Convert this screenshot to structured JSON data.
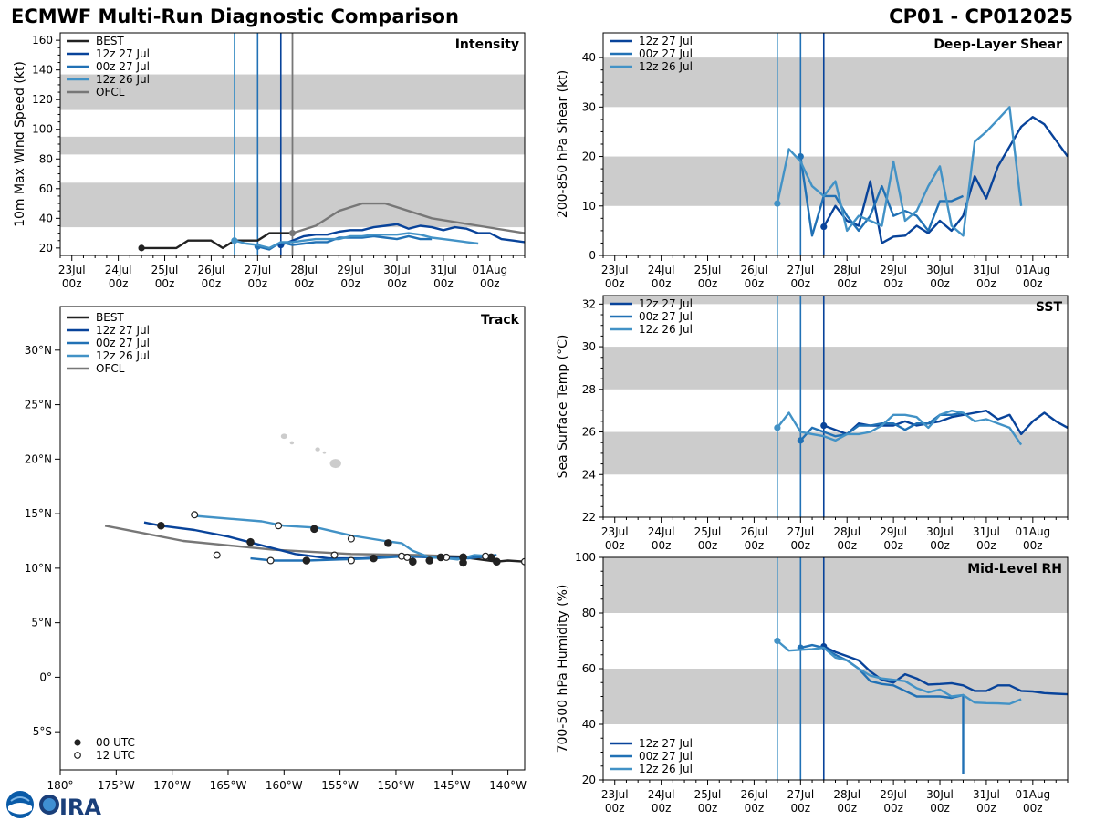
{
  "header": {
    "title_left": "ECMWF Multi-Run Diagnostic Comparison",
    "title_right": "CP01 - CP012025"
  },
  "colors": {
    "BEST": "#222222",
    "12z 27 Jul": "#08439a",
    "00z 27 Jul": "#2171b5",
    "12z 26 Jul": "#4292c6",
    "OFCL": "#777777",
    "band": "#cccccc",
    "land": "#cccccc"
  },
  "time_ticks": [
    "23Jul\n00z",
    "24Jul\n00z",
    "25Jul\n00z",
    "26Jul\n00z",
    "27Jul\n00z",
    "28Jul\n00z",
    "29Jul\n00z",
    "30Jul\n00z",
    "31Jul\n00z",
    "01Aug\n00z"
  ],
  "init_markers": [
    {
      "run": "12z 26 Jul",
      "t": 3.5
    },
    {
      "run": "00z 27 Jul",
      "t": 4.0
    },
    {
      "run": "12z 27 Jul",
      "t": 4.5
    }
  ],
  "logo": {
    "noaa": "NOAA",
    "cira": "CIRA"
  },
  "chart_data": [
    {
      "id": "intensity",
      "type": "line",
      "title": "Intensity",
      "ylabel": "10m Max Wind Speed (kt)",
      "xlim": [
        -0.25,
        9.75
      ],
      "ylim": [
        15,
        165
      ],
      "yticks": [
        20,
        40,
        60,
        80,
        100,
        120,
        140,
        160
      ],
      "bands": [
        [
          34,
          64
        ],
        [
          83,
          95
        ],
        [
          113,
          137
        ]
      ],
      "legend": [
        "BEST",
        "12z 27 Jul",
        "00z 27 Jul",
        "12z 26 Jul",
        "OFCL"
      ],
      "extra_vlines": [
        {
          "run": "OFCL",
          "t": 4.75
        }
      ],
      "series": [
        {
          "name": "BEST",
          "t": [
            1.5,
            1.75,
            2.0,
            2.25,
            2.5,
            2.75,
            3.0,
            3.25,
            3.5,
            3.75,
            4.0,
            4.25,
            4.5,
            4.75
          ],
          "v": [
            20,
            20,
            20,
            20,
            25,
            25,
            25,
            20,
            25,
            25,
            25,
            30,
            30,
            30
          ]
        },
        {
          "name": "12z 27 Jul",
          "t": [
            4.5,
            4.75,
            5.0,
            5.25,
            5.5,
            5.75,
            6.0,
            6.25,
            6.5,
            6.75,
            7.0,
            7.25,
            7.5,
            7.75,
            8.0,
            8.25,
            8.5,
            8.75,
            9.0,
            9.25,
            9.5,
            9.75
          ],
          "v": [
            22,
            25,
            28,
            29,
            29,
            31,
            32,
            32,
            34,
            35,
            36,
            33,
            35,
            34,
            32,
            34,
            33,
            30,
            30,
            26,
            25,
            24
          ]
        },
        {
          "name": "00z 27 Jul",
          "t": [
            4.0,
            4.25,
            4.5,
            4.75,
            5.0,
            5.25,
            5.5,
            5.75,
            6.0,
            6.25,
            6.5,
            6.75,
            7.0,
            7.25,
            7.5,
            7.75
          ],
          "v": [
            21,
            19,
            24,
            22,
            23,
            24,
            24,
            27,
            27,
            27,
            28,
            27,
            26,
            28,
            26,
            26
          ]
        },
        {
          "name": "12z 26 Jul",
          "t": [
            3.5,
            3.75,
            4.0,
            4.25,
            4.5,
            4.75,
            5.0,
            5.25,
            5.5,
            5.75,
            6.0,
            6.25,
            6.5,
            6.75,
            7.0,
            7.25,
            7.5,
            7.75,
            8.0,
            8.25,
            8.5,
            8.75
          ],
          "v": [
            25,
            23,
            22,
            20,
            24,
            24,
            25,
            26,
            26,
            26,
            28,
            28,
            29,
            29,
            29,
            30,
            29,
            27,
            26,
            25,
            24,
            23
          ]
        },
        {
          "name": "OFCL",
          "t": [
            4.75,
            5.25,
            5.75,
            6.25,
            6.75,
            7.75,
            8.75,
            9.75
          ],
          "v": [
            30,
            35,
            45,
            50,
            50,
            40,
            35,
            30
          ]
        }
      ]
    },
    {
      "id": "shear",
      "type": "line",
      "title": "Deep-Layer Shear",
      "ylabel": "200-850 hPa Shear (kt)",
      "xlim": [
        -0.25,
        9.75
      ],
      "ylim": [
        0,
        45
      ],
      "yticks": [
        0,
        10,
        20,
        30,
        40
      ],
      "bands": [
        [
          10,
          20
        ],
        [
          30,
          40
        ]
      ],
      "legend": [
        "12z 27 Jul",
        "00z 27 Jul",
        "12z 26 Jul"
      ],
      "series": [
        {
          "name": "12z 27 Jul",
          "t": [
            4.5,
            4.75,
            5.0,
            5.25,
            5.5,
            5.75,
            6.0,
            6.25,
            6.5,
            6.75,
            7.0,
            7.25,
            7.5,
            7.75,
            8.0,
            8.25,
            8.5,
            8.75,
            9.0,
            9.25,
            9.75
          ],
          "v": [
            5.8,
            10,
            7,
            6,
            15,
            2.5,
            3.8,
            4,
            6,
            4.5,
            7,
            5,
            8,
            16,
            11.5,
            18,
            22,
            26,
            28,
            26.5,
            20
          ]
        },
        {
          "name": "00z 27 Jul",
          "t": [
            4.0,
            4.25,
            4.5,
            4.75,
            5.0,
            5.25,
            5.5,
            5.75,
            6.0,
            6.25,
            6.5,
            6.75,
            7.0,
            7.25,
            7.5
          ],
          "v": [
            20,
            4,
            12,
            12,
            8,
            5,
            8,
            14,
            8,
            9,
            8,
            5,
            11,
            11,
            12
          ]
        },
        {
          "name": "12z 26 Jul",
          "t": [
            3.5,
            3.75,
            4.0,
            4.25,
            4.5,
            4.75,
            5.0,
            5.25,
            5.5,
            5.75,
            6.0,
            6.25,
            6.5,
            6.75,
            7.0,
            7.25,
            7.5,
            7.75,
            8.0,
            8.25,
            8.5,
            8.75
          ],
          "v": [
            10.5,
            21.5,
            19,
            14,
            12,
            15,
            5,
            8,
            7,
            6,
            19,
            7,
            9,
            14,
            18,
            6,
            4,
            23,
            25,
            27.5,
            30,
            10
          ]
        }
      ]
    },
    {
      "id": "sst",
      "type": "line",
      "title": "SST",
      "ylabel": "Sea Surface Temp (°C)",
      "xlim": [
        -0.25,
        9.75
      ],
      "ylim": [
        22,
        32.4
      ],
      "yticks": [
        22,
        24,
        26,
        28,
        30,
        32
      ],
      "bands": [
        [
          24,
          26
        ],
        [
          28,
          30
        ],
        [
          32,
          34
        ]
      ],
      "legend": [
        "12z 27 Jul",
        "00z 27 Jul",
        "12z 26 Jul"
      ],
      "series": [
        {
          "name": "12z 27 Jul",
          "t": [
            4.5,
            4.75,
            5.0,
            5.25,
            5.5,
            5.75,
            6.0,
            6.25,
            6.5,
            6.75,
            7.0,
            7.25,
            7.5,
            7.75,
            8.0,
            8.25,
            8.5,
            8.75,
            9.0,
            9.25,
            9.5,
            9.75
          ],
          "v": [
            26.3,
            26.1,
            25.9,
            26.4,
            26.3,
            26.3,
            26.3,
            26.5,
            26.3,
            26.4,
            26.5,
            26.7,
            26.8,
            26.9,
            27.0,
            26.6,
            26.8,
            25.9,
            26.5,
            26.9,
            26.5,
            26.2
          ]
        },
        {
          "name": "00z 27 Jul",
          "t": [
            4.0,
            4.25,
            4.5,
            4.75,
            5.0,
            5.25,
            5.5,
            5.75,
            6.0,
            6.25,
            6.5,
            6.75,
            7.0,
            7.25,
            7.5
          ],
          "v": [
            25.6,
            26.2,
            26.0,
            25.8,
            25.9,
            26.3,
            26.3,
            26.4,
            26.4,
            26.1,
            26.4,
            26.4,
            26.8,
            26.8,
            26.9
          ]
        },
        {
          "name": "12z 26 Jul",
          "t": [
            3.5,
            3.75,
            4.0,
            4.25,
            4.5,
            4.75,
            5.0,
            5.25,
            5.5,
            5.75,
            6.0,
            6.25,
            6.5,
            6.75,
            7.0,
            7.25,
            7.5,
            7.75,
            8.0,
            8.25,
            8.5,
            8.75
          ],
          "v": [
            26.2,
            26.9,
            26.0,
            25.9,
            25.8,
            25.6,
            25.9,
            25.9,
            26.0,
            26.3,
            26.8,
            26.8,
            26.7,
            26.2,
            26.8,
            27.0,
            26.9,
            26.5,
            26.6,
            26.4,
            26.2,
            25.4
          ]
        }
      ]
    },
    {
      "id": "rh",
      "type": "line",
      "title": "Mid-Level RH",
      "ylabel": "700-500 hPa Humidity (%)",
      "xlim": [
        -0.25,
        9.75
      ],
      "ylim": [
        20,
        100
      ],
      "yticks": [
        20,
        40,
        60,
        80,
        100
      ],
      "bands": [
        [
          40,
          60
        ],
        [
          80,
          100
        ]
      ],
      "legend": [
        "12z 27 Jul",
        "00z 27 Jul",
        "12z 26 Jul"
      ],
      "legend_pos": "bottom-left",
      "series": [
        {
          "name": "12z 27 Jul",
          "t": [
            4.5,
            4.75,
            5.0,
            5.25,
            5.5,
            5.75,
            6.0,
            6.25,
            6.5,
            6.75,
            7.0,
            7.25,
            7.5,
            7.75,
            8.0,
            8.25,
            8.5,
            8.75,
            9.0,
            9.25,
            9.5,
            9.75
          ],
          "v": [
            68,
            66,
            64.5,
            63,
            59,
            56,
            55,
            58,
            56.5,
            54.3,
            54.5,
            54.8,
            54,
            52,
            52,
            54,
            54,
            52,
            51.8,
            51.2,
            51,
            50.8
          ]
        },
        {
          "name": "00z 27 Jul",
          "t": [
            4.0,
            4.25,
            4.5,
            4.75,
            5.0,
            5.25,
            5.5,
            5.75,
            6.0,
            6.25,
            6.5,
            6.75,
            7.0,
            7.25,
            7.5,
            7.5
          ],
          "v": [
            67.5,
            68.5,
            67.5,
            65,
            63,
            60,
            55.5,
            54.5,
            54,
            52,
            50,
            50,
            50,
            49.5,
            50.5,
            22
          ]
        },
        {
          "name": "12z 26 Jul",
          "t": [
            3.5,
            3.75,
            4.0,
            4.25,
            4.5,
            4.75,
            5.0,
            5.25,
            5.5,
            5.75,
            6.0,
            6.25,
            6.5,
            6.75,
            7.0,
            7.25,
            7.5,
            7.75,
            8.0,
            8.25,
            8.5,
            8.75
          ],
          "v": [
            70,
            66.5,
            66.8,
            67,
            67.5,
            64,
            63,
            60,
            57.5,
            56.5,
            56,
            55.5,
            53,
            51.5,
            52.5,
            50,
            50.5,
            47.8,
            47.6,
            47.5,
            47.3,
            49
          ]
        }
      ]
    },
    {
      "id": "track",
      "type": "scatter",
      "title": "Track",
      "xlim": [
        180,
        221.5
      ],
      "ylim": [
        -8.5,
        34
      ],
      "xticks": [
        180,
        185,
        190,
        195,
        200,
        205,
        210,
        215,
        220
      ],
      "xticklabels": [
        "180°",
        "175°W",
        "170°W",
        "165°W",
        "160°W",
        "155°W",
        "150°W",
        "145°W",
        "140°W"
      ],
      "yticks": [
        -5,
        0,
        5,
        10,
        15,
        20,
        25,
        30
      ],
      "yticklabels": [
        "5°S",
        "0°",
        "5°N",
        "10°N",
        "15°N",
        "20°N",
        "25°N",
        "30°N"
      ],
      "legend": [
        "BEST",
        "12z 27 Jul",
        "00z 27 Jul",
        "12z 26 Jul",
        "OFCL"
      ],
      "marker_legend": [
        "00 UTC",
        "12 UTC"
      ],
      "series": [
        {
          "name": "OFCL",
          "x": [
            184,
            191,
            199,
            206,
            212,
            218
          ],
          "y": [
            13.9,
            12.5,
            11.7,
            11.3,
            11.2,
            11.0
          ]
        },
        {
          "name": "BEST",
          "x": [
            213,
            215,
            216,
            219,
            220,
            221.5
          ],
          "y": [
            11.0,
            11.0,
            11.0,
            10.6,
            10.7,
            10.6
          ],
          "d00": [
            [
              216,
              11.0
            ],
            [
              219,
              10.6
            ]
          ],
          "d12": [
            [
              214.5,
              11.0
            ],
            [
              221.5,
              10.6
            ]
          ]
        },
        {
          "name": "12z 27 Jul",
          "x": [
            187.5,
            189,
            192,
            195,
            198,
            201,
            204,
            207,
            210,
            213,
            216,
            218.5
          ],
          "y": [
            14.2,
            13.9,
            13.5,
            12.9,
            12.1,
            11.3,
            10.9,
            10.9,
            11.1,
            11.0,
            10.9,
            11.1
          ],
          "d00": [
            [
              189,
              13.9
            ],
            [
              197,
              12.4
            ],
            [
              202,
              10.7
            ],
            [
              208,
              10.9
            ],
            [
              213,
              10.7
            ],
            [
              216,
              11.0
            ]
          ],
          "d12": [
            [
              194,
              11.2
            ],
            [
              204.5,
              11.2
            ],
            [
              210.5,
              11.1
            ]
          ]
        },
        {
          "name": "00z 27 Jul",
          "x": [
            197,
            199,
            202,
            205,
            208,
            211,
            213.5,
            215,
            216.5,
            218,
            219
          ],
          "y": [
            10.9,
            10.7,
            10.7,
            10.8,
            10.9,
            11.1,
            11.0,
            10.9,
            10.9,
            11.1,
            11.2
          ],
          "d00": [
            [
              211.5,
              10.6
            ],
            [
              216,
              10.5
            ],
            [
              218.5,
              11.0
            ]
          ],
          "d12": [
            [
              198.8,
              10.7
            ],
            [
              206,
              10.7
            ]
          ]
        },
        {
          "name": "12z 26 Jul",
          "x": [
            192,
            198,
            200,
            203,
            206,
            209,
            210.5,
            211.5,
            213,
            214.5,
            215.5,
            217,
            218.5
          ],
          "y": [
            14.8,
            14.3,
            13.9,
            13.7,
            13.0,
            12.5,
            12.3,
            11.6,
            11.0,
            10.9,
            10.8,
            11.2,
            11.1
          ],
          "d00": [
            [
              202.7,
              13.6
            ],
            [
              209.3,
              12.3
            ],
            [
              214,
              11.0
            ]
          ],
          "d12": [
            [
              192,
              14.9
            ],
            [
              199.5,
              13.9
            ],
            [
              206,
              12.7
            ],
            [
              211,
              11.0
            ],
            [
              218,
              11.1
            ]
          ]
        }
      ]
    }
  ]
}
